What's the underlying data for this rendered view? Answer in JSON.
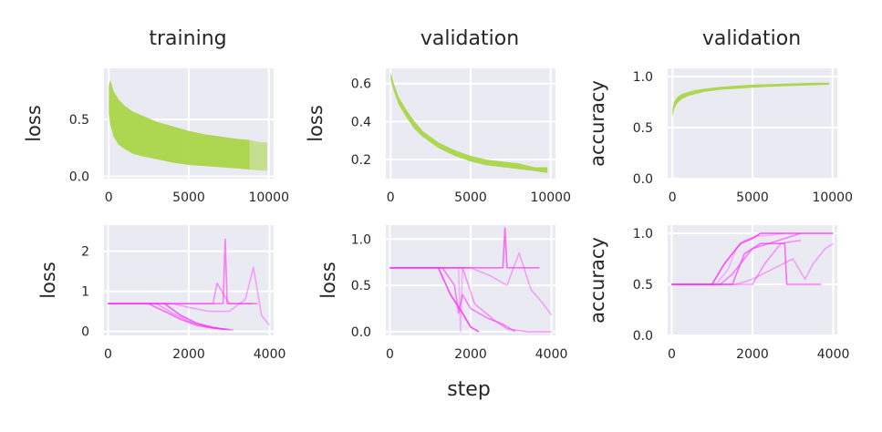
{
  "figure": {
    "xlabel": "step"
  },
  "columns": [
    "training",
    "validation",
    "validation"
  ],
  "colors": {
    "green": "#a6d43f",
    "magenta": "#ff33ff",
    "panel_bg": "#eaeaf2",
    "grid": "#ffffff"
  },
  "chart_data": [
    {
      "type": "line",
      "title": "training",
      "ylabel": "loss",
      "xlim": [
        -300,
        10300
      ],
      "ylim": [
        -0.02,
        0.95
      ],
      "xticks": [
        0,
        5000,
        10000
      ],
      "xtick_labels": [
        "0",
        "5000",
        "10000"
      ],
      "yticks": [
        0.0,
        0.5
      ],
      "ytick_labels": [
        "0.0",
        "0.5"
      ],
      "series": [
        {
          "band": true,
          "x": [
            0,
            100,
            300,
            600,
            1000,
            1500,
            2000,
            3000,
            4000,
            5000,
            6000,
            7000,
            8000,
            8800
          ],
          "upper": [
            0.8,
            0.85,
            0.75,
            0.68,
            0.62,
            0.57,
            0.54,
            0.48,
            0.44,
            0.4,
            0.37,
            0.35,
            0.33,
            0.32
          ],
          "lower": [
            0.55,
            0.45,
            0.35,
            0.28,
            0.24,
            0.2,
            0.18,
            0.15,
            0.12,
            0.1,
            0.09,
            0.08,
            0.07,
            0.06
          ]
        },
        {
          "band": true,
          "faint": true,
          "x": [
            8800,
            9500,
            9900
          ],
          "upper": [
            0.32,
            0.3,
            0.3
          ],
          "lower": [
            0.06,
            0.05,
            0.05
          ]
        }
      ]
    },
    {
      "type": "line",
      "title": "validation",
      "ylabel": "loss",
      "xlim": [
        -300,
        10300
      ],
      "ylim": [
        0.1,
        0.68
      ],
      "xticks": [
        0,
        5000,
        10000
      ],
      "xtick_labels": [
        "0",
        "5000",
        "10000"
      ],
      "yticks": [
        0.2,
        0.4,
        0.6
      ],
      "ytick_labels": [
        "0.2",
        "0.4",
        "0.6"
      ],
      "series": [
        {
          "band": true,
          "x": [
            0,
            200,
            500,
            1000,
            1500,
            2000,
            3000,
            4000,
            5000,
            6000,
            7000,
            8000,
            9000,
            9800
          ],
          "upper": [
            0.66,
            0.6,
            0.53,
            0.46,
            0.4,
            0.35,
            0.29,
            0.25,
            0.22,
            0.2,
            0.19,
            0.18,
            0.16,
            0.16
          ],
          "lower": [
            0.62,
            0.56,
            0.49,
            0.42,
            0.36,
            0.32,
            0.26,
            0.22,
            0.19,
            0.17,
            0.16,
            0.15,
            0.14,
            0.13
          ]
        }
      ]
    },
    {
      "type": "line",
      "title": "validation",
      "ylabel": "accuracy",
      "xlim": [
        -300,
        10300
      ],
      "ylim": [
        0.0,
        1.08
      ],
      "xticks": [
        0,
        5000,
        10000
      ],
      "xtick_labels": [
        "0",
        "5000",
        "10000"
      ],
      "yticks": [
        0.0,
        0.5,
        1.0
      ],
      "ytick_labels": [
        "0.0",
        "0.5",
        "1.0"
      ],
      "series": [
        {
          "band": true,
          "x": [
            0,
            100,
            300,
            600,
            1000,
            1500,
            2000,
            3000,
            4000,
            5000,
            6000,
            7000,
            8000,
            9000,
            9800
          ],
          "upper": [
            0.68,
            0.75,
            0.8,
            0.83,
            0.85,
            0.87,
            0.88,
            0.9,
            0.91,
            0.92,
            0.925,
            0.93,
            0.935,
            0.94,
            0.94
          ],
          "lower": [
            0.6,
            0.68,
            0.74,
            0.78,
            0.81,
            0.83,
            0.85,
            0.87,
            0.88,
            0.89,
            0.9,
            0.905,
            0.91,
            0.915,
            0.92
          ]
        }
      ]
    },
    {
      "type": "line",
      "ylabel": "loss",
      "xlim": [
        -100,
        4100
      ],
      "ylim": [
        -0.1,
        2.65
      ],
      "xticks": [
        0,
        2000,
        4000
      ],
      "xtick_labels": [
        "0",
        "2000",
        "4000"
      ],
      "yticks": [
        0,
        1,
        2
      ],
      "ytick_labels": [
        "0",
        "1",
        "2"
      ],
      "series": [
        {
          "x": [
            0,
            1000,
            1400,
            1800,
            2200,
            2600,
            3000
          ],
          "y": [
            0.69,
            0.69,
            0.5,
            0.3,
            0.15,
            0.08,
            0.05
          ],
          "alpha": 0.7
        },
        {
          "x": [
            0,
            1200,
            1600,
            2000,
            2400,
            2800,
            3100
          ],
          "y": [
            0.69,
            0.69,
            0.45,
            0.25,
            0.12,
            0.06,
            0.03
          ],
          "alpha": 0.5
        },
        {
          "x": [
            0,
            1400,
            1800,
            2200,
            2600,
            2900
          ],
          "y": [
            0.69,
            0.69,
            0.4,
            0.2,
            0.1,
            0.05
          ],
          "alpha": 0.8
        },
        {
          "x": [
            0,
            1500,
            2000,
            2500,
            2850,
            2900,
            2950,
            3200,
            3700
          ],
          "y": [
            0.69,
            0.69,
            0.69,
            0.69,
            0.69,
            2.3,
            0.69,
            0.69,
            0.69
          ],
          "alpha": 0.6
        },
        {
          "x": [
            0,
            1600,
            2000,
            2500,
            3000,
            3400,
            3600,
            3800,
            4000
          ],
          "y": [
            0.69,
            0.69,
            0.6,
            0.5,
            0.5,
            0.8,
            1.6,
            0.4,
            0.15
          ],
          "alpha": 0.4
        },
        {
          "x": [
            0,
            2000,
            2600,
            2700,
            3000,
            3600
          ],
          "y": [
            0.69,
            0.69,
            0.69,
            1.2,
            0.69,
            0.69
          ],
          "alpha": 0.5
        }
      ]
    },
    {
      "type": "line",
      "ylabel": "loss",
      "xlim": [
        -100,
        4100
      ],
      "ylim": [
        -0.04,
        1.15
      ],
      "xticks": [
        0,
        2000,
        4000
      ],
      "xtick_labels": [
        "0",
        "2000",
        "4000"
      ],
      "yticks": [
        0.0,
        0.5,
        1.0
      ],
      "ytick_labels": [
        "0.0",
        "0.5",
        "1.0"
      ],
      "series": [
        {
          "x": [
            0,
            1200,
            1500,
            1800,
            2000,
            2200
          ],
          "y": [
            0.69,
            0.69,
            0.4,
            0.2,
            0.05,
            0.0
          ],
          "alpha": 0.9
        },
        {
          "x": [
            0,
            1300,
            1600,
            1700,
            1800,
            2000,
            2400,
            2800,
            3100
          ],
          "y": [
            0.69,
            0.69,
            0.5,
            0.2,
            0.4,
            0.25,
            0.15,
            0.08,
            0.0
          ],
          "alpha": 0.6
        },
        {
          "x": [
            0,
            1500,
            1700,
            1750,
            1800,
            2000
          ],
          "y": [
            0.69,
            0.69,
            0.69,
            0.0,
            0.69,
            0.69
          ],
          "alpha": 0.3
        },
        {
          "x": [
            0,
            1600,
            2000,
            2500,
            2800,
            2850,
            2900,
            3200,
            3700
          ],
          "y": [
            0.69,
            0.69,
            0.69,
            0.69,
            0.69,
            1.12,
            0.69,
            0.69,
            0.69
          ],
          "alpha": 0.7
        },
        {
          "x": [
            0,
            1500,
            2000,
            2500,
            2900,
            3200,
            3500,
            3800,
            4000
          ],
          "y": [
            0.69,
            0.69,
            0.69,
            0.6,
            0.5,
            0.85,
            0.45,
            0.3,
            0.18
          ],
          "alpha": 0.4
        },
        {
          "x": [
            0,
            1800,
            2100,
            2600,
            2900,
            3400,
            4000
          ],
          "y": [
            0.69,
            0.69,
            0.3,
            0.12,
            0.03,
            0.0,
            0.0
          ],
          "alpha": 0.5
        }
      ]
    },
    {
      "type": "line",
      "ylabel": "accuracy",
      "xlim": [
        -100,
        4100
      ],
      "ylim": [
        0.0,
        1.08
      ],
      "xticks": [
        0,
        2000,
        4000
      ],
      "xtick_labels": [
        "0",
        "2000",
        "4000"
      ],
      "yticks": [
        0.0,
        0.5,
        1.0
      ],
      "ytick_labels": [
        "0.0",
        "0.5",
        "1.0"
      ],
      "series": [
        {
          "x": [
            0,
            1000,
            1300,
            1500,
            1700,
            2000,
            2200,
            4000
          ],
          "y": [
            0.5,
            0.5,
            0.7,
            0.8,
            0.9,
            0.95,
            1.0,
            1.0
          ],
          "alpha": 0.9
        },
        {
          "x": [
            0,
            1200,
            1500,
            1800,
            2000,
            2400,
            2800,
            3200
          ],
          "y": [
            0.5,
            0.5,
            0.6,
            0.75,
            0.85,
            0.9,
            0.95,
            1.0
          ],
          "alpha": 0.6
        },
        {
          "x": [
            0,
            1100,
            1400,
            1600,
            1800,
            2100,
            2400,
            2800
          ],
          "y": [
            0.5,
            0.5,
            0.65,
            0.85,
            0.93,
            0.97,
            0.98,
            1.0
          ],
          "alpha": 0.3
        },
        {
          "x": [
            0,
            1500,
            1800,
            2200,
            2800,
            2850,
            2900,
            3700
          ],
          "y": [
            0.5,
            0.5,
            0.8,
            0.9,
            0.9,
            0.5,
            0.5,
            0.5
          ],
          "alpha": 0.7
        },
        {
          "x": [
            0,
            1600,
            2000,
            2500,
            3000,
            3300,
            3500,
            3800,
            4000
          ],
          "y": [
            0.5,
            0.5,
            0.55,
            0.65,
            0.75,
            0.55,
            0.7,
            0.85,
            0.9
          ],
          "alpha": 0.4
        },
        {
          "x": [
            0,
            2000,
            2300,
            2700,
            3000,
            3200
          ],
          "y": [
            0.5,
            0.5,
            0.7,
            0.9,
            0.92,
            0.93
          ],
          "alpha": 0.5
        }
      ]
    }
  ]
}
